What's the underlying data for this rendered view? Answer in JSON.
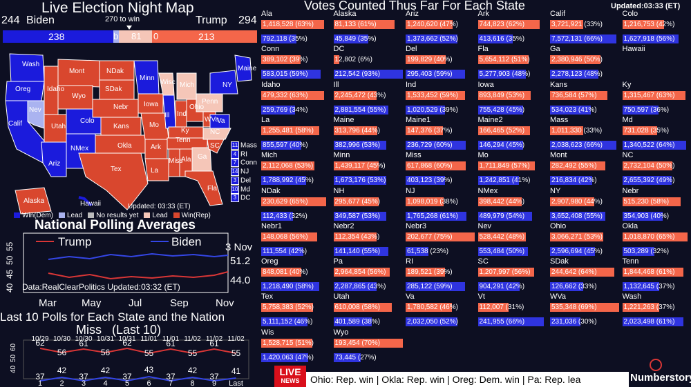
{
  "header": {
    "title": "Live Election Night Map",
    "biden_total": "244",
    "biden_label": "Biden",
    "trump_label": "Trump",
    "trump_total": "294",
    "win_marker": "270 to win",
    "bar_biden": "238",
    "bar_trump": "213",
    "bar_mid_a": "b",
    "bar_mid_b": "81",
    "bar_mid_c": "0"
  },
  "map": {
    "updated": "Updated: 03:33 (ET)",
    "labels": [
      "Wash",
      "Oreg",
      "Idaho",
      "Mont",
      "NDak",
      "Minn",
      "Calif",
      "Nev",
      "Utah",
      "Wyo",
      "SDak",
      "Nebr",
      "Iowa",
      "Ill",
      "Colo",
      "Kans",
      "Mo",
      "Ind",
      "Ohio",
      "Penn",
      "NY",
      "Maine",
      "Ariz",
      "NMex",
      "Okla",
      "Ark",
      "Tenn",
      "Ky",
      "WVa",
      "Va",
      "NC",
      "SC",
      "Tex",
      "La",
      "Miss",
      "Ala",
      "Ga",
      "Fla",
      "Mich",
      "Wisc",
      "Hawaii",
      "Alaska"
    ],
    "small_states": [
      {
        "num": "11",
        "name": "Mass"
      },
      {
        "num": "4",
        "name": "RI"
      },
      {
        "num": "7",
        "name": "Conn"
      },
      {
        "num": "14",
        "name": "NJ"
      },
      {
        "num": "3",
        "name": "Del"
      },
      {
        "num": "10",
        "name": "Md"
      },
      {
        "num": "3",
        "name": "DC"
      }
    ],
    "legend": [
      "Win(Dem)",
      "Lead",
      "No results yet",
      "Lead",
      "Win(Rep)"
    ]
  },
  "colors": {
    "dem": "#1b1bdc",
    "dem_lead": "#aab3f0",
    "rep": "#d9472e",
    "rep_lead": "#f5c6b8",
    "bg": "#0d0f22"
  },
  "national": {
    "title": "National Polling Averages",
    "trump": "Trump",
    "biden": "Biden",
    "date": "3 Nov",
    "biden_val": "51.2",
    "trump_val": "44.0",
    "source": "Data:RealClearPolitics  Updated:03:32 (ET)",
    "y_ticks": [
      "40",
      "45",
      "50",
      "55"
    ],
    "months": [
      "Mar",
      "May",
      "Jul",
      "Sep",
      "Nov"
    ]
  },
  "polls": {
    "title": "Last 10 Polls for Each State and the Nation",
    "subtitle": "Miss   (Last 10)",
    "dates": [
      "10/29",
      "10/30",
      "10/30",
      "10/31",
      "10/31",
      "11/01",
      "11/01",
      "11/02",
      "11/02",
      "11/02"
    ],
    "rep": [
      62,
      56,
      61,
      56,
      62,
      55,
      61,
      55,
      61,
      55
    ],
    "dem": [
      37,
      42,
      37,
      42,
      37,
      43,
      37,
      42,
      37,
      41
    ],
    "x": [
      "1",
      "2",
      "3",
      "4",
      "5",
      "6",
      "7",
      "8",
      "9",
      "Last"
    ],
    "y_ticks": [
      "40",
      "50",
      "60"
    ]
  },
  "votes": {
    "title": "Votes Counted Thus Far For Each State",
    "updated": "Updated:03:33 (ET)",
    "states": [
      {
        "n": "Ala",
        "r": "1,418,528 (63%)",
        "rp": 63,
        "d": "792,118 (35%)",
        "dp": 35
      },
      {
        "n": "Alaska",
        "r": "81,133 (61%)",
        "rp": 61,
        "d": "45,849 (35%)",
        "dp": 35
      },
      {
        "n": "Ariz",
        "r": "1,240,620 (47%)",
        "rp": 47,
        "d": "1,373,662 (52%)",
        "dp": 52
      },
      {
        "n": "Ark",
        "r": "744,823 (62%)",
        "rp": 62,
        "d": "413,616 (35%)",
        "dp": 35
      },
      {
        "n": "Calif",
        "r": "3,721,921 (33%)",
        "rp": 33,
        "d": "7,572,131 (66%)",
        "dp": 66
      },
      {
        "n": "Colo",
        "r": "1,216,753 (42%)",
        "rp": 42,
        "d": "1,627,918 (56%)",
        "dp": 56
      },
      {
        "n": "Conn",
        "r": "389,102 (39%)",
        "rp": 39,
        "d": "583,015 (59%)",
        "dp": 59
      },
      {
        "n": "DC",
        "r": "12,802 (6%)",
        "rp": 6,
        "d": "212,542 (93%)",
        "dp": 93
      },
      {
        "n": "Del",
        "r": "199,829 (40%)",
        "rp": 40,
        "d": "295,403 (59%)",
        "dp": 59
      },
      {
        "n": "Fla",
        "r": "5,654,112 (51%)",
        "rp": 51,
        "d": "5,277,903 (48%)",
        "dp": 48
      },
      {
        "n": "Ga",
        "r": "2,380,946 (50%)",
        "rp": 50,
        "d": "2,278,123 (48%)",
        "dp": 48
      },
      {
        "n": "Hawaii",
        "r": "",
        "rp": 0,
        "d": "",
        "dp": 0
      },
      {
        "n": "Idaho",
        "r": "479,332 (63%)",
        "rp": 63,
        "d": "259,769 (34%)",
        "dp": 34
      },
      {
        "n": "Ill",
        "r": "2,245,472 (43%)",
        "rp": 43,
        "d": "2,881,554 (55%)",
        "dp": 55
      },
      {
        "n": "Ind",
        "r": "1,533,452 (59%)",
        "rp": 59,
        "d": "1,020,529 (39%)",
        "dp": 39
      },
      {
        "n": "Iowa",
        "r": "893,849 (53%)",
        "rp": 53,
        "d": "755,428 (45%)",
        "dp": 45
      },
      {
        "n": "Kans",
        "r": "736,584 (57%)",
        "rp": 57,
        "d": "534,023 (41%)",
        "dp": 41
      },
      {
        "n": "Ky",
        "r": "1,315,467 (63%)",
        "rp": 63,
        "d": "750,597 (36%)",
        "dp": 36
      },
      {
        "n": "La",
        "r": "1,255,481 (58%)",
        "rp": 58,
        "d": "855,597 (40%)",
        "dp": 40
      },
      {
        "n": "Maine",
        "r": "313,796 (44%)",
        "rp": 44,
        "d": "382,996 (53%)",
        "dp": 53
      },
      {
        "n": "Maine1",
        "r": "147,376 (37%)",
        "rp": 37,
        "d": "236,729 (60%)",
        "dp": 60
      },
      {
        "n": "Maine2",
        "r": "166,465 (52%)",
        "rp": 52,
        "d": "146,294 (45%)",
        "dp": 45
      },
      {
        "n": "Mass",
        "r": "1,011,330 (33%)",
        "rp": 33,
        "d": "2,038,623 (66%)",
        "dp": 66
      },
      {
        "n": "Md",
        "r": "731,028 (35%)",
        "rp": 35,
        "d": "1,340,522 (64%)",
        "dp": 64
      },
      {
        "n": "Mich",
        "r": "2,112,068 (53%)",
        "rp": 53,
        "d": "1,788,992 (45%)",
        "dp": 45
      },
      {
        "n": "Minn",
        "r": "1,439,117 (45%)",
        "rp": 45,
        "d": "1,673,176 (53%)",
        "dp": 53
      },
      {
        "n": "Miss",
        "r": "617,868 (60%)",
        "rp": 60,
        "d": "403,123 (39%)",
        "dp": 39
      },
      {
        "n": "Mo",
        "r": "1,711,849 (57%)",
        "rp": 57,
        "d": "1,242,851 (41%)",
        "dp": 41
      },
      {
        "n": "Mont",
        "r": "282,492 (55%)",
        "rp": 55,
        "d": "216,834 (42%)",
        "dp": 42
      },
      {
        "n": "NC",
        "r": "2,732,104 (50%)",
        "rp": 50,
        "d": "2,655,392 (49%)",
        "dp": 49
      },
      {
        "n": "NDak",
        "r": "230,629 (65%)",
        "rp": 65,
        "d": "112,433 (32%)",
        "dp": 32
      },
      {
        "n": "NH",
        "r": "295,677 (45%)",
        "rp": 45,
        "d": "349,587 (53%)",
        "dp": 53
      },
      {
        "n": "NJ",
        "r": "1,098,019 (38%)",
        "rp": 38,
        "d": "1,765,268 (61%)",
        "dp": 61
      },
      {
        "n": "NMex",
        "r": "398,442 (44%)",
        "rp": 44,
        "d": "489,979 (54%)",
        "dp": 54
      },
      {
        "n": "NY",
        "r": "2,907,980 (44%)",
        "rp": 44,
        "d": "3,652,408 (55%)",
        "dp": 55
      },
      {
        "n": "Nebr",
        "r": "515,230 (58%)",
        "rp": 58,
        "d": "354,903 (40%)",
        "dp": 40
      },
      {
        "n": "Nebr1",
        "r": "148,068 (56%)",
        "rp": 56,
        "d": "111,554 (42%)",
        "dp": 42
      },
      {
        "n": "Nebr2",
        "r": "112,354 (43%)",
        "rp": 43,
        "d": "141,140 (55%)",
        "dp": 55
      },
      {
        "n": "Nebr3",
        "r": "202,677 (75%)",
        "rp": 75,
        "d": "61,538 (23%)",
        "dp": 23
      },
      {
        "n": "Nev",
        "r": "528,442 (48%)",
        "rp": 48,
        "d": "553,484 (50%)",
        "dp": 50
      },
      {
        "n": "Ohio",
        "r": "3,066,271 (53%)",
        "rp": 53,
        "d": "2,596,694 (45%)",
        "dp": 45
      },
      {
        "n": "Okla",
        "r": "1,018,870 (65%)",
        "rp": 65,
        "d": "503,289 (32%)",
        "dp": 32
      },
      {
        "n": "Oreg",
        "r": "848,081 (40%)",
        "rp": 40,
        "d": "1,218,490 (58%)",
        "dp": 58
      },
      {
        "n": "Pa",
        "r": "2,964,854 (56%)",
        "rp": 56,
        "d": "2,287,865 (43%)",
        "dp": 43
      },
      {
        "n": "RI",
        "r": "189,521 (39%)",
        "rp": 39,
        "d": "285,122 (59%)",
        "dp": 59
      },
      {
        "n": "SC",
        "r": "1,207,997 (56%)",
        "rp": 56,
        "d": "904,291 (42%)",
        "dp": 42
      },
      {
        "n": "SDak",
        "r": "244,642 (64%)",
        "rp": 64,
        "d": "126,662 (33%)",
        "dp": 33
      },
      {
        "n": "Tenn",
        "r": "1,844,468 (61%)",
        "rp": 61,
        "d": "1,132,645 (37%)",
        "dp": 37
      },
      {
        "n": "Tex",
        "r": "5,758,383 (52%)",
        "rp": 52,
        "d": "5,111,152 (46%)",
        "dp": 46
      },
      {
        "n": "Utah",
        "r": "610,008 (58%)",
        "rp": 58,
        "d": "401,589 (38%)",
        "dp": 38
      },
      {
        "n": "Va",
        "r": "1,780,582 (46%)",
        "rp": 46,
        "d": "2,032,050 (52%)",
        "dp": 52
      },
      {
        "n": "Vt",
        "r": "112,007 (31%)",
        "rp": 31,
        "d": "241,955 (66%)",
        "dp": 66
      },
      {
        "n": "WVa",
        "r": "535,348 (69%)",
        "rp": 69,
        "d": "231,036 (30%)",
        "dp": 30
      },
      {
        "n": "Wash",
        "r": "1,221,263 (37%)",
        "rp": 37,
        "d": "2,023,498 (61%)",
        "dp": 61
      },
      {
        "n": "Wis",
        "r": "1,528,715 (51%)",
        "rp": 51,
        "d": "1,420,063 (47%)",
        "dp": 47
      },
      {
        "n": "Wyo",
        "r": "193,454 (70%)",
        "rp": 70,
        "d": "73,445 (27%)",
        "dp": 27
      }
    ]
  },
  "ticker": {
    "live": "LIVE",
    "news": "NEWS",
    "text": "Ohio: Rep. win | Okla: Rep. win | Oreg: Dem. win | Pa: Rep. lea"
  },
  "brand": "Numberstory",
  "chart_data": [
    {
      "type": "bar",
      "title": "Votes Counted Thus Far For Each State",
      "categories": [
        "Ala",
        "Alaska",
        "Ariz",
        "Ark",
        "Calif",
        "Colo",
        "Conn",
        "DC",
        "Del",
        "Fla",
        "Ga",
        "Hawaii",
        "Idaho",
        "Ill",
        "Ind",
        "Iowa",
        "Kans",
        "Ky",
        "La",
        "Maine",
        "Maine1",
        "Maine2",
        "Mass",
        "Md",
        "Mich",
        "Minn",
        "Miss",
        "Mo",
        "Mont",
        "NC",
        "NDak",
        "NH",
        "NJ",
        "NMex",
        "NY",
        "Nebr",
        "Nebr1",
        "Nebr2",
        "Nebr3",
        "Nev",
        "Ohio",
        "Okla",
        "Oreg",
        "Pa",
        "RI",
        "SC",
        "SDak",
        "Tenn",
        "Tex",
        "Utah",
        "Va",
        "Vt",
        "WVa",
        "Wash",
        "Wis",
        "Wyo"
      ],
      "series": []
    },
    {
      "type": "line",
      "title": "National Polling Averages",
      "x": [
        "3 Nov"
      ],
      "series": [
        {
          "name": "Biden",
          "values": [
            51.2
          ]
        },
        {
          "name": "Trump",
          "values": [
            44.0
          ]
        }
      ],
      "ylim": [
        40,
        55
      ]
    },
    {
      "type": "line",
      "title": "Last 10 Polls for Each State and the Nation",
      "categories": [
        "1",
        "2",
        "3",
        "4",
        "5",
        "6",
        "7",
        "8",
        "9",
        "Last"
      ],
      "series": [
        {
          "values": [
            62,
            56,
            61,
            56,
            62,
            55,
            61,
            55,
            61,
            55
          ]
        },
        {
          "values": [
            37,
            42,
            37,
            42,
            37,
            43,
            37,
            42,
            37,
            41
          ]
        }
      ]
    }
  ]
}
